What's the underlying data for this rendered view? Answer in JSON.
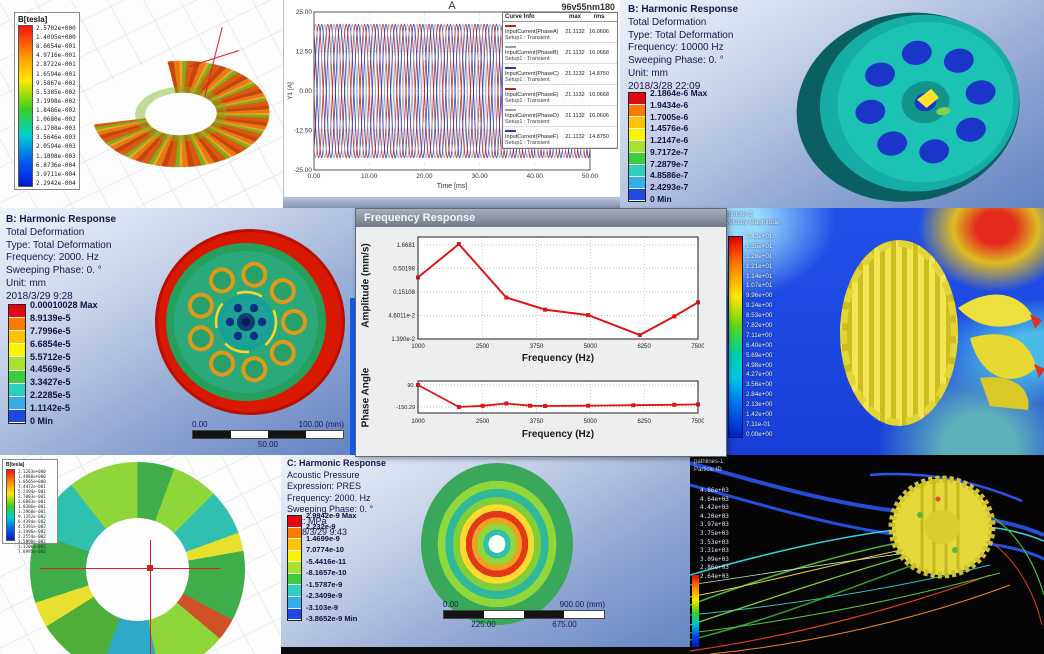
{
  "theme": {
    "band_colors": [
      "#e30613",
      "#f97b00",
      "#fdc500",
      "#f8f400",
      "#a7e22e",
      "#3ecb3e",
      "#2ecfc0",
      "#35aee8",
      "#2049e0"
    ]
  },
  "panels": {
    "flux_torus": {
      "legend_title": "B[tesla]",
      "values": [
        "2.5702e+000",
        "1.4095e+000",
        "8.6054e-001",
        "4.9716e-001",
        "2.8722e-001",
        "1.6594e-001",
        "9.5867e-002",
        "5.5385e-002",
        "3.1998e-002",
        "1.8486e-002",
        "1.0680e-002",
        "6.1708e-003",
        "3.5646e-003",
        "2.0594e-003",
        "1.1898e-003",
        "6.8736e-004",
        "3.9711e-004",
        "2.2942e-004"
      ]
    },
    "deform_10k": {
      "header": [
        "B: Harmonic Response",
        "Total Deformation",
        "Type: Total Deformation",
        "Frequency: 10000 Hz",
        "Sweeping Phase: 0. °",
        "Unit: mm",
        "2018/3/28 22:09"
      ],
      "scale_labels": [
        "2.1864e-6 Max",
        "1.9434e-6",
        "1.7005e-6",
        "1.4576e-6",
        "1.2147e-6",
        "9.7172e-7",
        "7.2879e-7",
        "4.8586e-7",
        "2.4293e-7",
        "0 Min"
      ]
    },
    "deform_2k": {
      "header": [
        "B: Harmonic Response",
        "Total Deformation",
        "Type: Total Deformation",
        "Frequency: 2000. Hz",
        "Sweeping Phase: 0. °",
        "Unit: mm",
        "2018/3/29 9:28"
      ],
      "scale_labels": [
        "0.00010028 Max",
        "8.9139e-5",
        "7.7996e-5",
        "6.6854e-5",
        "5.5712e-5",
        "4.4569e-5",
        "3.3427e-5",
        "2.2285e-5",
        "1.1142e-5",
        "0 Min"
      ],
      "ruler": {
        "start": "0.00",
        "mid": "50.00",
        "end": "100.00 (mm)"
      }
    },
    "cfd_velocity": {
      "legend_header": [
        "contour-2",
        "Velocity Magnitude"
      ],
      "scale_labels": [
        "1.42e+01",
        "1.35e+01",
        "1.28e+01",
        "1.21e+01",
        "1.14e+01",
        "1.07e+01",
        "9.96e+00",
        "9.24e+00",
        "8.53e+00",
        "7.82e+00",
        "7.11e+00",
        "6.40e+00",
        "5.69e+00",
        "4.98e+00",
        "4.27e+00",
        "3.56e+00",
        "2.84e+00",
        "2.13e+00",
        "1.42e+00",
        "7.11e-01",
        "0.00e+00"
      ]
    },
    "flux_rotor": {
      "legend_title": "B[tesla]",
      "values": [
        "2.1263e+000",
        "1.4988e+000",
        "1.0565e+000",
        "7.4472e-001",
        "5.2494e-001",
        "3.7003e-001",
        "2.6083e-001",
        "1.8386e-001",
        "1.2960e-001",
        "9.1352e-002",
        "6.4394e-002",
        "4.5391e-002",
        "3.1996e-002",
        "2.2554e-002",
        "1.5898e-002",
        "1.1206e-002",
        "7.8995e-003"
      ]
    },
    "acoustic": {
      "header": [
        "C: Harmonic Response",
        "Acoustic Pressure",
        "Expression: PRES",
        "Frequency: 2000. Hz",
        "Sweeping Phase: 0. °",
        "Unit: MPa",
        "2018/3/29 9:43"
      ],
      "scale_labels": [
        "2.9942e-9 Max",
        "2.232e-9",
        "1.4699e-9",
        "7.0774e-10",
        "-5.4416e-11",
        "-8.1657e-10",
        "-1.5787e-9",
        "-2.3409e-9",
        "-3.103e-9",
        "-3.8652e-9 Min"
      ],
      "ruler": {
        "start": "0.00",
        "q1": "225.00",
        "q3": "675.00",
        "end": "900.00 (mm)"
      }
    },
    "pathlines": {
      "legend_header": [
        "pathlines-1",
        "Particle ID"
      ],
      "values": [
        "4.86e+03",
        "4.64e+03",
        "4.42e+03",
        "4.20e+03",
        "3.97e+03",
        "3.75e+03",
        "3.53e+03",
        "3.31e+03",
        "3.09e+03",
        "2.86e+03",
        "2.64e+03"
      ]
    }
  },
  "chart_data": [
    {
      "id": "input-currents",
      "type": "line",
      "title": "A",
      "subtitle": "96v55nm180",
      "xlabel": "Time [ms]",
      "ylabel": "Y1 [A]",
      "x_range": [
        0,
        50
      ],
      "y_range": [
        -25,
        25
      ],
      "x_ticks": [
        "0.00",
        "10.00",
        "20.00",
        "30.00",
        "40.00",
        "50.00"
      ],
      "y_ticks": [
        "25.00",
        "12.50",
        "0.00",
        "-12.50",
        "-25.00"
      ],
      "amplitude": 21.1132,
      "cycles": 15,
      "legend_header": {
        "info": "Curve Info",
        "max": "max",
        "rms": "rms"
      },
      "series": [
        {
          "name": "InputCurrent(PhaseA)",
          "setup": "Setup1 : Transient",
          "color": "#c02020",
          "phase_deg": 0,
          "max": "21.1132",
          "rms": "16.0606"
        },
        {
          "name": "InputCurrent(PhaseB)",
          "setup": "Setup1 : Transient",
          "color": "#9aa0a8",
          "phase_deg": -120,
          "max": "21.1132",
          "rms": "16.0668"
        },
        {
          "name": "InputCurrent(PhaseC)",
          "setup": "Setup1 : Transient",
          "color": "#2838b8",
          "phase_deg": 120,
          "max": "21.1132",
          "rms": "14.8750"
        },
        {
          "name": "InputCurrent(PhaseE)",
          "setup": "Setup1 : Transient",
          "color": "#c02020",
          "phase_deg": 180,
          "max": "21.1132",
          "rms": "16.0668"
        },
        {
          "name": "InputCurrent(PhaseD)",
          "setup": "Setup1 : Transient",
          "color": "#9aa0a8",
          "phase_deg": 60,
          "max": "21.1132",
          "rms": "16.0606"
        },
        {
          "name": "InputCurrent(PhaseF)",
          "setup": "Setup1 : Transient",
          "color": "#2838b8",
          "phase_deg": -60,
          "max": "21.1132",
          "rms": "14.8750"
        }
      ]
    },
    {
      "id": "frequency-response-amplitude",
      "type": "line",
      "window_title": "Frequency Response",
      "xlabel": "Frequency (Hz)",
      "ylabel": "Amplitude (mm/s)",
      "y_scale": "log",
      "x_ticks": [
        "1000",
        "2500",
        "3750",
        "5000",
        "6250",
        "7500"
      ],
      "y_ticks": [
        "1.6681",
        "0.50198",
        "0.15108",
        "4.6011e-2",
        "1.390e-2"
      ],
      "color": "#e01414",
      "points": [
        [
          1000,
          0.32
        ],
        [
          1950,
          1.75
        ],
        [
          3050,
          0.115
        ],
        [
          3950,
          0.062
        ],
        [
          4950,
          0.047
        ],
        [
          6150,
          0.017
        ],
        [
          6950,
          0.044
        ],
        [
          7500,
          0.09
        ]
      ]
    },
    {
      "id": "frequency-response-phase",
      "type": "line",
      "xlabel": "Frequency (Hz)",
      "ylabel": "Phase Angle",
      "x_ticks": [
        "1000",
        "2500",
        "3750",
        "5000",
        "6250",
        "7500"
      ],
      "y_ticks": [
        "90.",
        "-150.29"
      ],
      "color": "#e01414",
      "points": [
        [
          1000,
          90
        ],
        [
          1950,
          -150.29
        ],
        [
          2500,
          -137
        ],
        [
          3050,
          -112
        ],
        [
          3600,
          -136
        ],
        [
          3950,
          -139
        ],
        [
          4950,
          -136
        ],
        [
          6000,
          -131
        ],
        [
          6950,
          -126
        ],
        [
          7500,
          -122
        ]
      ]
    }
  ]
}
